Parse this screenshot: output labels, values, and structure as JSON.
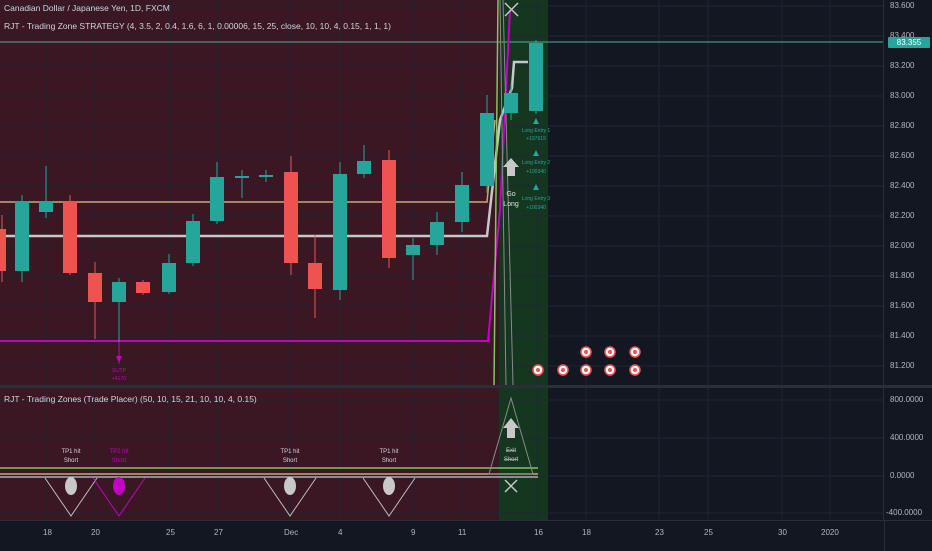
{
  "header": {
    "symbol": "Canadian Dollar / Japanese Yen, 1D, FXCM",
    "strategy": "RJT - Trading Zone STRATEGY (4, 3.5, 2, 0.4, 1.6, 6, 1, 0.00006, 15, 25, close, 10, 10, 4, 0.15, 1, 1, 1)"
  },
  "subpane": {
    "legend": "RJT - Trading Zones (Trade Placer) (50, 10, 15, 21, 10, 10, 4, 0.15)"
  },
  "price_axis": [
    "83.600",
    "83.400",
    "83.200",
    "83.000",
    "82.800",
    "82.600",
    "82.400",
    "82.200",
    "82.000",
    "81.800",
    "81.600",
    "81.400",
    "81.200"
  ],
  "last_price": "83.355",
  "osc_axis": [
    "800.0000",
    "400.0000",
    "0.0000",
    "-400.0000"
  ],
  "time_axis": [
    "18",
    "20",
    "25",
    "27",
    "Dec",
    "4",
    "9",
    "11",
    "16",
    "18",
    "23",
    "25",
    "30",
    "2020"
  ],
  "annotations": {
    "long_entries": [
      "Long Entry 1",
      "+197619",
      "Long Entry 2",
      "+100340",
      "Long Entry 3",
      "+100340"
    ],
    "go_long": [
      "Go",
      "Long"
    ],
    "sltp_label": [
      "SL/TP",
      "+4170"
    ],
    "tp_labels": [
      [
        "TP1 hit",
        "Short"
      ],
      [
        "TP2 hit",
        "Short"
      ],
      [
        "TP1 hit",
        "Short"
      ],
      [
        "TP1 hit",
        "Short"
      ]
    ],
    "exit_label": [
      "Exit",
      "Short"
    ]
  },
  "colors": {
    "up": "#26a69a",
    "down": "#ef5350",
    "zone_red": "#3c1a25",
    "zone_green": "#16391f",
    "magenta": "#c400c4",
    "tan": "#c8a878",
    "gray": "#c8c8c8"
  }
}
